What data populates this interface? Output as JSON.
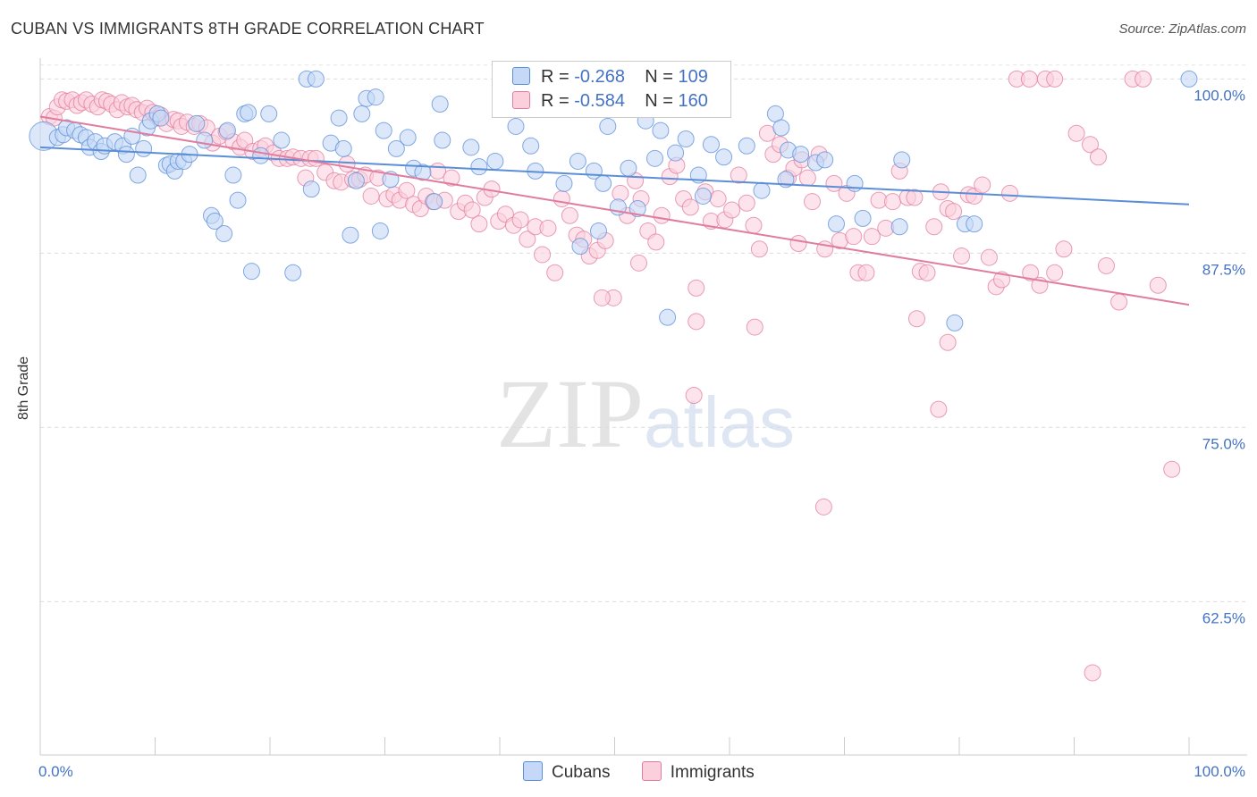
{
  "title": "CUBAN VS IMMIGRANTS 8TH GRADE CORRELATION CHART",
  "source": "Source: ZipAtlas.com",
  "watermark": {
    "zip": "ZIP",
    "atlas": "atlas"
  },
  "legend": {
    "r_label": "R =",
    "n_label": "N =",
    "rows": [
      {
        "r": "-0.268",
        "n": "109",
        "color": "#a9c4f0",
        "border": "#5b8ed8"
      },
      {
        "r": "-0.584",
        "n": "160",
        "color": "#f5b6c9",
        "border": "#e07d9e"
      }
    ]
  },
  "bottom_legend": [
    {
      "label": "Cubans",
      "color": "#c5d8f7",
      "border": "#5b8ed8"
    },
    {
      "label": "Immigrants",
      "color": "#fbd0dd",
      "border": "#e07d9e"
    }
  ],
  "chart_data": {
    "type": "scatter",
    "title": "CUBAN VS IMMIGRANTS 8TH GRADE CORRELATION CHART",
    "xlabel": "",
    "ylabel": "8th Grade",
    "xlim": [
      0,
      100
    ],
    "ylim": [
      51.5,
      101.5
    ],
    "x_tick_labels": [
      "0.0%",
      "100.0%"
    ],
    "y_ticks": [
      62.5,
      75.0,
      87.5,
      100.0
    ],
    "y_tick_labels": [
      "62.5%",
      "75.0%",
      "87.5%",
      "100.0%"
    ],
    "grid": true,
    "series": [
      {
        "name": "Cubans",
        "color": "#5b8ed8",
        "fill": "#c5d8f7",
        "trend": {
          "x": [
            0,
            100
          ],
          "y": [
            95.1,
            91.0
          ]
        },
        "points": [
          [
            0.3,
            95.9
          ],
          [
            1.5,
            95.8
          ],
          [
            2.0,
            96.0
          ],
          [
            2.3,
            96.5
          ],
          [
            3.0,
            96.3
          ],
          [
            3.5,
            96.0
          ],
          [
            4.0,
            95.8
          ],
          [
            4.3,
            95.1
          ],
          [
            4.8,
            95.5
          ],
          [
            5.3,
            94.8
          ],
          [
            5.6,
            95.2
          ],
          [
            6.5,
            95.5
          ],
          [
            7.2,
            95.2
          ],
          [
            7.5,
            94.6
          ],
          [
            8.0,
            95.9
          ],
          [
            8.5,
            93.1
          ],
          [
            9.0,
            95.0
          ],
          [
            9.3,
            96.5
          ],
          [
            9.6,
            97.0
          ],
          [
            10.2,
            97.5
          ],
          [
            10.5,
            97.2
          ],
          [
            11.0,
            93.8
          ],
          [
            11.3,
            93.9
          ],
          [
            11.7,
            93.4
          ],
          [
            12.0,
            94.1
          ],
          [
            12.5,
            94.1
          ],
          [
            13.0,
            94.6
          ],
          [
            13.6,
            96.8
          ],
          [
            14.3,
            95.6
          ],
          [
            14.9,
            90.2
          ],
          [
            15.2,
            89.8
          ],
          [
            16.0,
            88.9
          ],
          [
            16.3,
            96.3
          ],
          [
            16.8,
            93.1
          ],
          [
            17.2,
            91.3
          ],
          [
            17.8,
            97.5
          ],
          [
            18.1,
            97.6
          ],
          [
            18.4,
            86.2
          ],
          [
            19.2,
            94.5
          ],
          [
            19.9,
            97.5
          ],
          [
            21.0,
            95.6
          ],
          [
            22.0,
            86.1
          ],
          [
            23.2,
            100.0
          ],
          [
            23.6,
            92.1
          ],
          [
            24.0,
            100.0
          ],
          [
            25.3,
            95.4
          ],
          [
            26.0,
            97.2
          ],
          [
            26.4,
            95.0
          ],
          [
            27.0,
            88.8
          ],
          [
            27.5,
            92.7
          ],
          [
            28.0,
            97.5
          ],
          [
            28.4,
            98.6
          ],
          [
            29.2,
            98.7
          ],
          [
            29.6,
            89.1
          ],
          [
            29.9,
            96.3
          ],
          [
            30.5,
            92.8
          ],
          [
            31.0,
            95.0
          ],
          [
            32.0,
            95.8
          ],
          [
            32.5,
            93.6
          ],
          [
            33.3,
            93.3
          ],
          [
            34.3,
            91.2
          ],
          [
            34.8,
            98.2
          ],
          [
            35.0,
            95.6
          ],
          [
            37.5,
            95.1
          ],
          [
            38.2,
            93.7
          ],
          [
            39.6,
            94.1
          ],
          [
            41.4,
            96.6
          ],
          [
            42.7,
            95.2
          ],
          [
            43.1,
            93.4
          ],
          [
            45.6,
            92.5
          ],
          [
            46.8,
            94.1
          ],
          [
            47.0,
            88.0
          ],
          [
            48.2,
            93.4
          ],
          [
            48.6,
            89.1
          ],
          [
            49.0,
            92.5
          ],
          [
            49.4,
            96.6
          ],
          [
            50.3,
            90.8
          ],
          [
            51.2,
            93.6
          ],
          [
            52.0,
            90.7
          ],
          [
            52.7,
            97.0
          ],
          [
            53.5,
            94.3
          ],
          [
            54.0,
            96.3
          ],
          [
            54.6,
            82.9
          ],
          [
            55.3,
            94.7
          ],
          [
            56.2,
            95.7
          ],
          [
            57.3,
            93.1
          ],
          [
            57.7,
            91.6
          ],
          [
            58.4,
            95.3
          ],
          [
            59.5,
            94.4
          ],
          [
            61.5,
            95.2
          ],
          [
            62.8,
            92.0
          ],
          [
            64.0,
            97.5
          ],
          [
            64.5,
            96.5
          ],
          [
            64.9,
            92.8
          ],
          [
            65.1,
            94.9
          ],
          [
            66.2,
            94.6
          ],
          [
            67.5,
            94.0
          ],
          [
            68.3,
            94.2
          ],
          [
            69.3,
            89.6
          ],
          [
            70.9,
            92.5
          ],
          [
            71.6,
            90.0
          ],
          [
            74.8,
            89.4
          ],
          [
            75.0,
            94.2
          ],
          [
            79.6,
            82.5
          ],
          [
            80.5,
            89.6
          ],
          [
            81.3,
            89.6
          ],
          [
            100.0,
            100.0
          ]
        ]
      },
      {
        "name": "Immigrants",
        "color": "#e07d9e",
        "fill": "#fbd0dd",
        "trend": {
          "x": [
            0,
            100
          ],
          "y": [
            97.3,
            83.8
          ]
        },
        "points": [
          [
            0.8,
            97.3
          ],
          [
            1.2,
            97.2
          ],
          [
            1.5,
            98.0
          ],
          [
            1.9,
            98.5
          ],
          [
            2.3,
            98.4
          ],
          [
            2.8,
            98.5
          ],
          [
            3.2,
            98.1
          ],
          [
            3.6,
            98.3
          ],
          [
            4.0,
            98.5
          ],
          [
            4.5,
            98.2
          ],
          [
            5.0,
            98.0
          ],
          [
            5.4,
            98.5
          ],
          [
            5.8,
            98.4
          ],
          [
            6.2,
            98.2
          ],
          [
            6.7,
            97.8
          ],
          [
            7.1,
            98.3
          ],
          [
            7.6,
            98.0
          ],
          [
            8.0,
            98.1
          ],
          [
            8.4,
            97.8
          ],
          [
            8.9,
            97.6
          ],
          [
            9.3,
            97.9
          ],
          [
            9.8,
            97.6
          ],
          [
            10.2,
            97.2
          ],
          [
            10.5,
            97.4
          ],
          [
            11.0,
            96.8
          ],
          [
            11.6,
            97.1
          ],
          [
            12.0,
            97.0
          ],
          [
            12.3,
            96.6
          ],
          [
            12.8,
            96.9
          ],
          [
            13.4,
            96.6
          ],
          [
            13.9,
            96.8
          ],
          [
            14.5,
            96.5
          ],
          [
            15.0,
            95.4
          ],
          [
            15.6,
            95.9
          ],
          [
            16.2,
            96.2
          ],
          [
            16.8,
            95.5
          ],
          [
            17.4,
            95.1
          ],
          [
            17.8,
            95.6
          ],
          [
            18.5,
            94.8
          ],
          [
            19.2,
            95.0
          ],
          [
            19.6,
            95.2
          ],
          [
            20.3,
            94.7
          ],
          [
            20.8,
            94.3
          ],
          [
            21.5,
            94.3
          ],
          [
            22.0,
            94.4
          ],
          [
            22.7,
            94.3
          ],
          [
            23.1,
            92.9
          ],
          [
            23.5,
            94.3
          ],
          [
            24.0,
            94.3
          ],
          [
            24.8,
            93.3
          ],
          [
            25.6,
            92.7
          ],
          [
            26.2,
            92.6
          ],
          [
            26.7,
            93.9
          ],
          [
            27.2,
            92.8
          ],
          [
            27.8,
            92.8
          ],
          [
            28.3,
            93.1
          ],
          [
            28.8,
            91.6
          ],
          [
            29.4,
            92.9
          ],
          [
            30.2,
            91.4
          ],
          [
            30.8,
            91.7
          ],
          [
            31.3,
            91.3
          ],
          [
            31.9,
            92.0
          ],
          [
            32.5,
            91.0
          ],
          [
            33.1,
            90.7
          ],
          [
            33.6,
            91.6
          ],
          [
            34.2,
            91.2
          ],
          [
            34.6,
            93.4
          ],
          [
            35.2,
            91.3
          ],
          [
            35.8,
            92.9
          ],
          [
            36.4,
            90.5
          ],
          [
            37.0,
            91.1
          ],
          [
            37.6,
            90.6
          ],
          [
            38.2,
            89.6
          ],
          [
            38.7,
            91.5
          ],
          [
            39.3,
            92.1
          ],
          [
            39.9,
            89.8
          ],
          [
            40.5,
            90.3
          ],
          [
            41.2,
            89.5
          ],
          [
            41.8,
            89.9
          ],
          [
            42.4,
            88.5
          ],
          [
            43.1,
            89.4
          ],
          [
            43.7,
            87.4
          ],
          [
            44.2,
            89.3
          ],
          [
            44.8,
            86.1
          ],
          [
            45.4,
            91.4
          ],
          [
            46.1,
            90.2
          ],
          [
            46.7,
            88.8
          ],
          [
            47.3,
            88.5
          ],
          [
            47.8,
            87.3
          ],
          [
            48.5,
            87.7
          ],
          [
            49.2,
            88.4
          ],
          [
            49.9,
            84.3
          ],
          [
            50.5,
            91.8
          ],
          [
            51.1,
            90.2
          ],
          [
            51.8,
            92.7
          ],
          [
            52.3,
            91.4
          ],
          [
            52.9,
            89.1
          ],
          [
            53.6,
            88.3
          ],
          [
            54.1,
            90.2
          ],
          [
            54.8,
            93.0
          ],
          [
            55.4,
            93.8
          ],
          [
            56.0,
            91.4
          ],
          [
            56.6,
            90.8
          ],
          [
            57.1,
            85.0
          ],
          [
            57.9,
            91.9
          ],
          [
            58.4,
            89.8
          ],
          [
            59.0,
            91.4
          ],
          [
            59.6,
            89.9
          ],
          [
            60.2,
            90.6
          ],
          [
            60.8,
            93.1
          ],
          [
            61.5,
            91.1
          ],
          [
            62.1,
            89.5
          ],
          [
            62.6,
            87.8
          ],
          [
            63.3,
            96.1
          ],
          [
            63.8,
            94.6
          ],
          [
            64.4,
            95.3
          ],
          [
            65.1,
            92.9
          ],
          [
            65.6,
            93.6
          ],
          [
            66.3,
            94.2
          ],
          [
            66.8,
            92.9
          ],
          [
            67.2,
            91.2
          ],
          [
            67.8,
            94.6
          ],
          [
            68.3,
            87.8
          ],
          [
            69.1,
            92.5
          ],
          [
            69.6,
            88.4
          ],
          [
            70.2,
            91.8
          ],
          [
            70.8,
            88.7
          ],
          [
            71.2,
            86.1
          ],
          [
            71.9,
            86.1
          ],
          [
            72.4,
            88.7
          ],
          [
            73.0,
            91.3
          ],
          [
            73.6,
            89.3
          ],
          [
            74.2,
            91.2
          ],
          [
            74.8,
            93.4
          ],
          [
            75.5,
            91.5
          ],
          [
            76.1,
            91.5
          ],
          [
            76.6,
            86.2
          ],
          [
            77.2,
            86.1
          ],
          [
            77.8,
            89.4
          ],
          [
            78.4,
            91.9
          ],
          [
            79.0,
            90.7
          ],
          [
            79.5,
            90.5
          ],
          [
            80.2,
            87.3
          ],
          [
            80.8,
            91.7
          ],
          [
            81.3,
            91.6
          ],
          [
            82.0,
            92.4
          ],
          [
            82.6,
            87.2
          ],
          [
            83.2,
            85.1
          ],
          [
            83.7,
            85.6
          ],
          [
            84.4,
            91.8
          ],
          [
            85.0,
            100.0
          ],
          [
            86.1,
            100.0
          ],
          [
            87.5,
            100.0
          ],
          [
            88.3,
            100.0
          ],
          [
            89.1,
            87.8
          ],
          [
            90.2,
            96.1
          ],
          [
            91.4,
            95.3
          ],
          [
            92.1,
            94.4
          ],
          [
            92.8,
            86.6
          ],
          [
            93.9,
            84.0
          ],
          [
            95.1,
            100.0
          ],
          [
            96.0,
            100.0
          ],
          [
            97.3,
            85.2
          ],
          [
            98.5,
            72.0
          ],
          [
            68.2,
            69.3
          ],
          [
            56.9,
            77.3
          ],
          [
            78.2,
            76.3
          ],
          [
            88.3,
            86.1
          ],
          [
            86.2,
            86.1
          ],
          [
            76.3,
            82.8
          ],
          [
            91.6,
            57.4
          ],
          [
            87.0,
            85.2
          ],
          [
            52.1,
            86.8
          ],
          [
            48.9,
            84.3
          ],
          [
            57.1,
            82.6
          ],
          [
            62.2,
            82.2
          ],
          [
            66.0,
            88.2
          ],
          [
            79.0,
            81.1
          ]
        ]
      }
    ]
  }
}
